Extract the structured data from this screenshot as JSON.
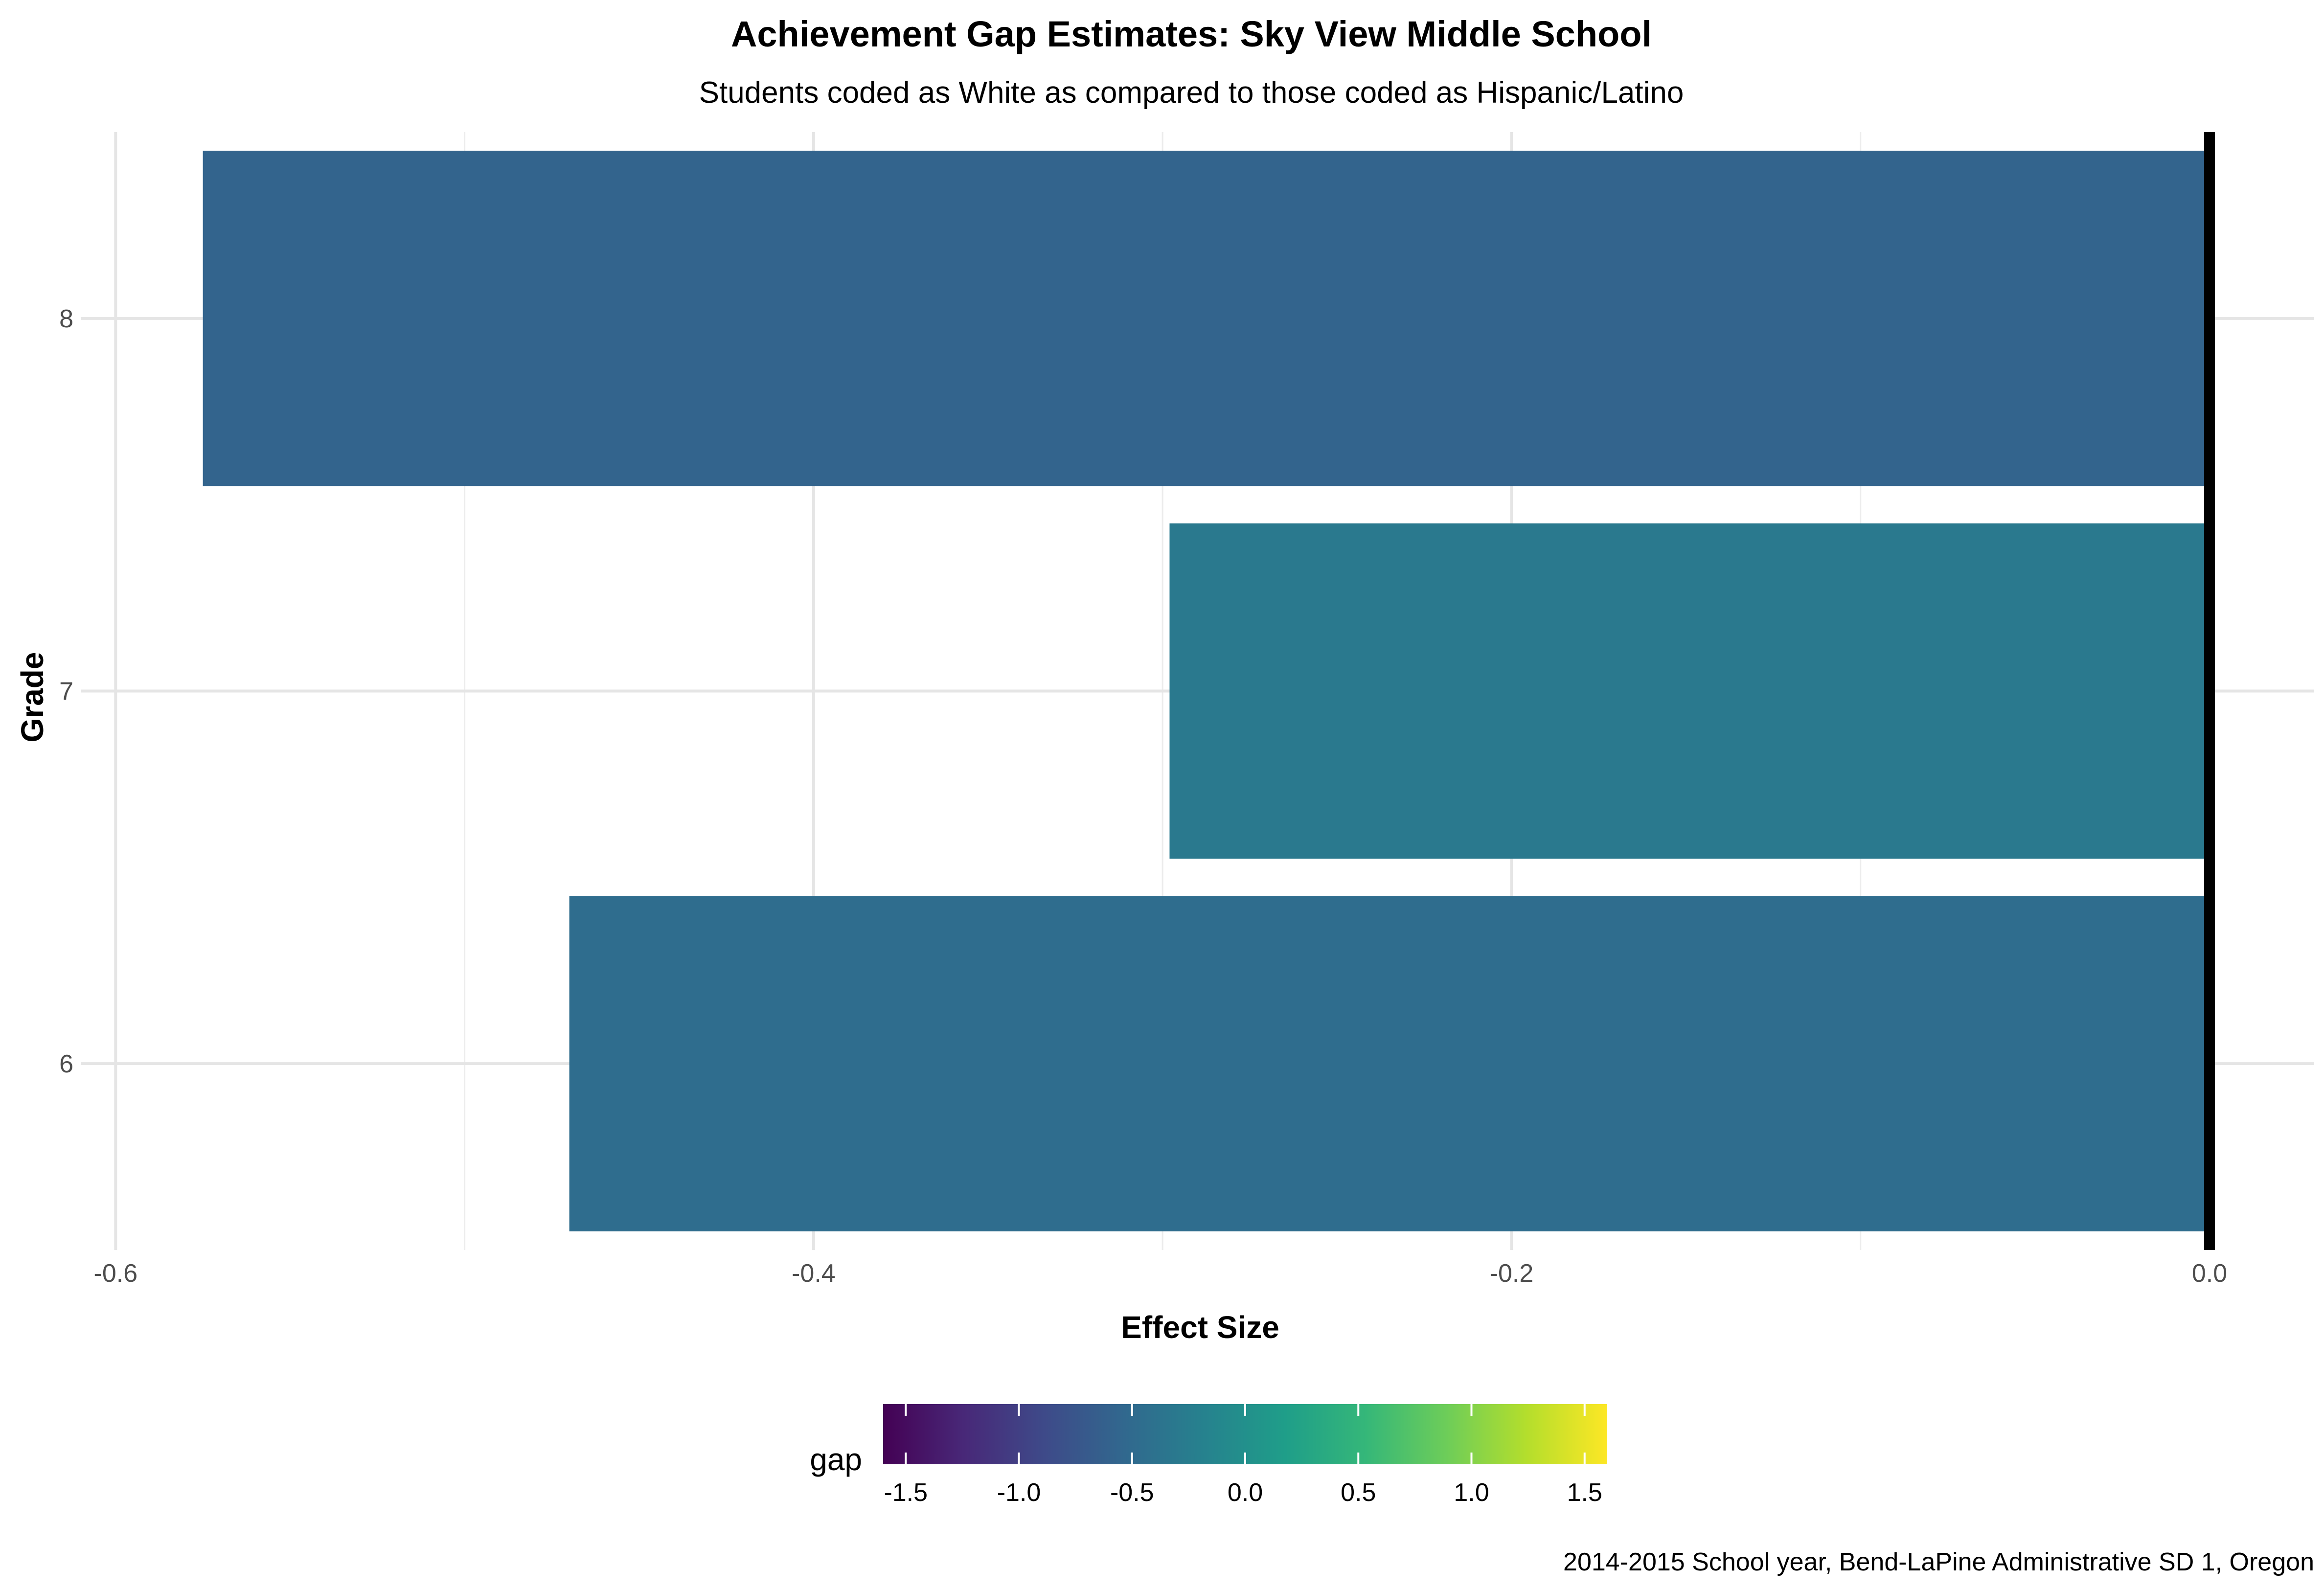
{
  "chart_data": {
    "type": "bar",
    "orientation": "horizontal",
    "title": "Achievement Gap Estimates: Sky View Middle School",
    "subtitle": "Students coded as White as compared to those coded as Hispanic/Latino",
    "xlabel": "Effect Size",
    "ylabel": "Grade",
    "categories": [
      "6",
      "7",
      "8"
    ],
    "values": [
      -0.47,
      -0.298,
      -0.575
    ],
    "xlim": [
      -0.61,
      0.03
    ],
    "x_ticks": [
      -0.6,
      -0.4,
      -0.2,
      0.0
    ],
    "x_tick_labels": [
      "-0.6",
      "-0.4",
      "-0.2",
      "0.0"
    ],
    "reference_line_x": 0.0,
    "grid": true,
    "legend": {
      "title": "gap",
      "type": "colorbar",
      "placement": "bottom",
      "range": [
        -1.6,
        1.6
      ],
      "ticks": [
        -1.5,
        -1.0,
        -0.5,
        0.0,
        0.5,
        1.0,
        1.5
      ],
      "tick_labels": [
        "-1.5",
        "-1.0",
        "-0.5",
        "0.0",
        "0.5",
        "1.0",
        "1.5"
      ],
      "palette": [
        "#440154",
        "#482878",
        "#3E4A89",
        "#31688E",
        "#26828E",
        "#1F9E89",
        "#35B779",
        "#6DCD59",
        "#B4DE2C",
        "#FDE725"
      ]
    },
    "caption": "2014-2015 School year, Bend-LaPine Administrative SD 1, Oregon"
  }
}
